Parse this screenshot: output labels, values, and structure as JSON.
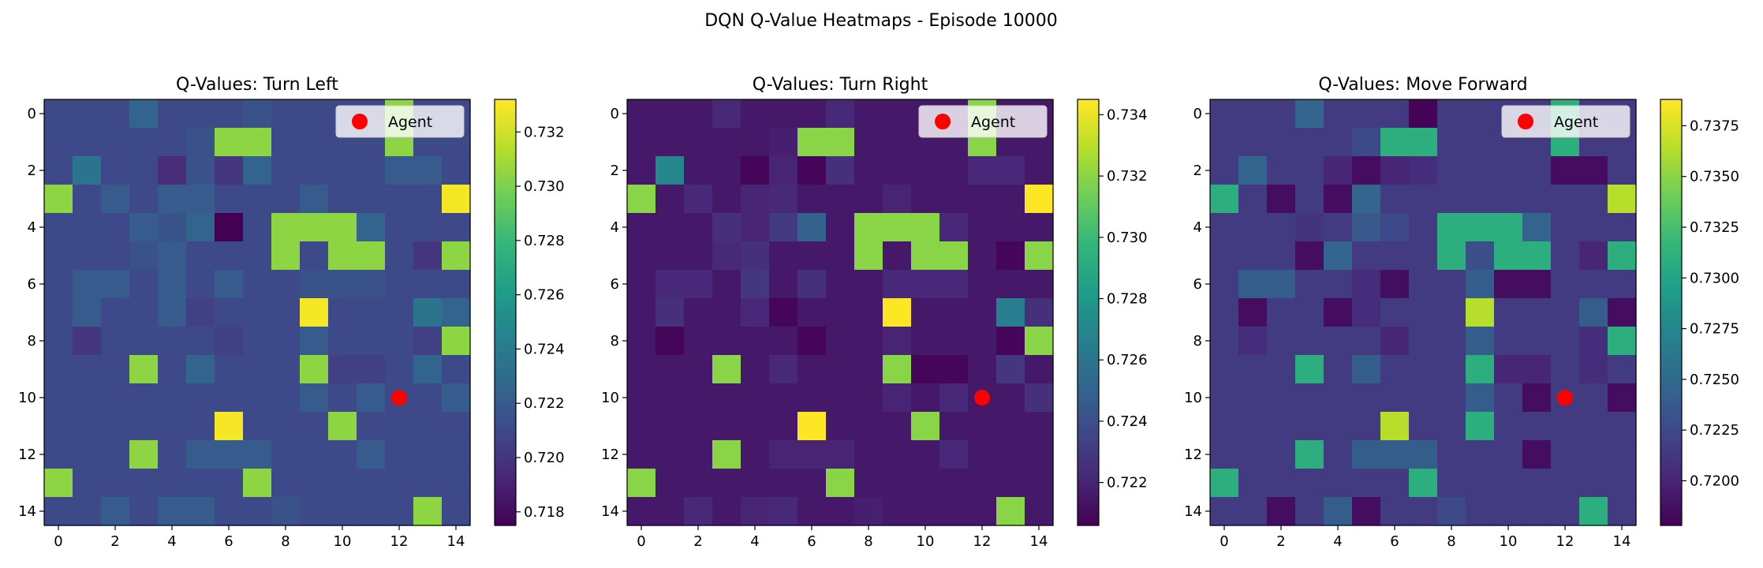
{
  "figure": {
    "suptitle": "DQN Q-Value Heatmaps - Episode 10000"
  },
  "colormap": [
    "#440154",
    "#482878",
    "#3e4989",
    "#31688e",
    "#26828e",
    "#1f9e89",
    "#35b779",
    "#6ece58",
    "#b5de2b",
    "#fde725"
  ],
  "chart_data": [
    {
      "type": "heatmap",
      "title": "Q-Values: Turn Left",
      "xlabel": "",
      "ylabel": "",
      "xticks": [
        0,
        2,
        4,
        6,
        8,
        10,
        12,
        14
      ],
      "yticks": [
        0,
        2,
        4,
        6,
        8,
        10,
        12,
        14
      ],
      "colorbar": {
        "min": 0.7175,
        "max": 0.7332,
        "ticks": [
          "0.718",
          "0.720",
          "0.722",
          "0.724",
          "0.726",
          "0.728",
          "0.730",
          "0.732"
        ]
      },
      "agent": {
        "x": 12,
        "y": 10,
        "label": "Agent",
        "color": "#ff0000"
      },
      "legend_position": "upper right",
      "values": [
        [
          0.721,
          0.721,
          0.721,
          0.7225,
          0.721,
          0.721,
          0.721,
          0.7215,
          0.721,
          0.721,
          0.721,
          0.721,
          0.7305,
          0.721,
          0.721
        ],
        [
          0.721,
          0.721,
          0.721,
          0.721,
          0.721,
          0.7215,
          0.7305,
          0.7305,
          0.721,
          0.721,
          0.721,
          0.721,
          0.7305,
          0.721,
          0.721
        ],
        [
          0.721,
          0.7235,
          0.721,
          0.721,
          0.7195,
          0.7215,
          0.72,
          0.7225,
          0.721,
          0.721,
          0.721,
          0.721,
          0.722,
          0.722,
          0.721
        ],
        [
          0.7305,
          0.721,
          0.722,
          0.721,
          0.722,
          0.722,
          0.721,
          0.721,
          0.721,
          0.722,
          0.721,
          0.721,
          0.721,
          0.721,
          0.733
        ],
        [
          0.721,
          0.721,
          0.721,
          0.722,
          0.7215,
          0.7225,
          0.7175,
          0.721,
          0.7305,
          0.7305,
          0.7305,
          0.7225,
          0.721,
          0.721,
          0.721
        ],
        [
          0.721,
          0.721,
          0.721,
          0.7215,
          0.722,
          0.721,
          0.721,
          0.721,
          0.7305,
          0.721,
          0.7305,
          0.7305,
          0.721,
          0.72,
          0.7305
        ],
        [
          0.721,
          0.722,
          0.722,
          0.721,
          0.722,
          0.721,
          0.722,
          0.721,
          0.721,
          0.7215,
          0.7215,
          0.7215,
          0.721,
          0.721,
          0.721
        ],
        [
          0.721,
          0.722,
          0.721,
          0.721,
          0.722,
          0.7205,
          0.721,
          0.721,
          0.721,
          0.733,
          0.721,
          0.721,
          0.721,
          0.7235,
          0.7225
        ],
        [
          0.721,
          0.72,
          0.721,
          0.721,
          0.721,
          0.721,
          0.7205,
          0.721,
          0.721,
          0.722,
          0.721,
          0.721,
          0.721,
          0.7205,
          0.7305
        ],
        [
          0.721,
          0.721,
          0.721,
          0.7305,
          0.721,
          0.7225,
          0.721,
          0.721,
          0.721,
          0.7305,
          0.7205,
          0.7205,
          0.721,
          0.7225,
          0.721
        ],
        [
          0.721,
          0.721,
          0.721,
          0.721,
          0.721,
          0.721,
          0.721,
          0.721,
          0.721,
          0.722,
          0.721,
          0.722,
          0.721,
          0.721,
          0.722
        ],
        [
          0.721,
          0.721,
          0.721,
          0.721,
          0.721,
          0.721,
          0.733,
          0.721,
          0.721,
          0.721,
          0.7305,
          0.721,
          0.721,
          0.721,
          0.721
        ],
        [
          0.721,
          0.721,
          0.721,
          0.7305,
          0.721,
          0.722,
          0.722,
          0.722,
          0.721,
          0.721,
          0.721,
          0.722,
          0.721,
          0.721,
          0.721
        ],
        [
          0.7305,
          0.721,
          0.721,
          0.721,
          0.721,
          0.721,
          0.721,
          0.7305,
          0.721,
          0.721,
          0.721,
          0.721,
          0.721,
          0.721,
          0.721
        ],
        [
          0.721,
          0.721,
          0.722,
          0.721,
          0.722,
          0.722,
          0.721,
          0.721,
          0.7215,
          0.721,
          0.721,
          0.721,
          0.721,
          0.7305,
          0.721
        ]
      ]
    },
    {
      "type": "heatmap",
      "title": "Q-Values: Turn Right",
      "xlabel": "",
      "ylabel": "",
      "xticks": [
        0,
        2,
        4,
        6,
        8,
        10,
        12,
        14
      ],
      "yticks": [
        0,
        2,
        4,
        6,
        8,
        10,
        12,
        14
      ],
      "colorbar": {
        "min": 0.7206,
        "max": 0.7345,
        "ticks": [
          "0.722",
          "0.724",
          "0.726",
          "0.728",
          "0.730",
          "0.732",
          "0.734"
        ]
      },
      "agent": {
        "x": 12,
        "y": 10,
        "label": "Agent",
        "color": "#ff0000"
      },
      "legend_position": "upper right",
      "values": [
        [
          0.7215,
          0.7215,
          0.7215,
          0.7222,
          0.7215,
          0.7215,
          0.7215,
          0.7222,
          0.7215,
          0.7215,
          0.7215,
          0.7215,
          0.732,
          0.7215,
          0.7215
        ],
        [
          0.7215,
          0.7215,
          0.7215,
          0.7215,
          0.7215,
          0.7218,
          0.732,
          0.732,
          0.7215,
          0.7215,
          0.7215,
          0.7215,
          0.732,
          0.7215,
          0.7215
        ],
        [
          0.7215,
          0.727,
          0.7215,
          0.7215,
          0.7208,
          0.722,
          0.7208,
          0.7225,
          0.7215,
          0.7215,
          0.7215,
          0.7215,
          0.7222,
          0.7222,
          0.7215
        ],
        [
          0.732,
          0.7215,
          0.7222,
          0.7215,
          0.722,
          0.7222,
          0.7215,
          0.7215,
          0.7215,
          0.722,
          0.7215,
          0.7215,
          0.7215,
          0.7215,
          0.7345
        ],
        [
          0.7215,
          0.7215,
          0.7215,
          0.7225,
          0.722,
          0.723,
          0.725,
          0.7215,
          0.732,
          0.732,
          0.732,
          0.7222,
          0.7215,
          0.7215,
          0.7215
        ],
        [
          0.7215,
          0.7215,
          0.7215,
          0.7222,
          0.7225,
          0.7215,
          0.7215,
          0.7215,
          0.732,
          0.7215,
          0.732,
          0.732,
          0.7215,
          0.7208,
          0.732
        ],
        [
          0.7215,
          0.7222,
          0.7222,
          0.7215,
          0.7228,
          0.7215,
          0.7225,
          0.7215,
          0.7215,
          0.7222,
          0.7222,
          0.7222,
          0.7215,
          0.7215,
          0.7215
        ],
        [
          0.7215,
          0.7225,
          0.7215,
          0.7215,
          0.7222,
          0.7208,
          0.7215,
          0.7215,
          0.7215,
          0.7345,
          0.7215,
          0.7215,
          0.7215,
          0.7265,
          0.7225
        ],
        [
          0.7215,
          0.7208,
          0.7215,
          0.7215,
          0.7215,
          0.7215,
          0.7208,
          0.7215,
          0.7215,
          0.722,
          0.7215,
          0.7215,
          0.7215,
          0.7208,
          0.732
        ],
        [
          0.7215,
          0.7215,
          0.7215,
          0.732,
          0.7215,
          0.7222,
          0.7215,
          0.7215,
          0.7215,
          0.732,
          0.7208,
          0.7208,
          0.7215,
          0.7228,
          0.7215
        ],
        [
          0.7215,
          0.7215,
          0.7215,
          0.7215,
          0.7215,
          0.7215,
          0.7215,
          0.7215,
          0.7215,
          0.722,
          0.7215,
          0.7222,
          0.7215,
          0.7215,
          0.7225
        ],
        [
          0.7215,
          0.7215,
          0.7215,
          0.7215,
          0.7215,
          0.7215,
          0.7345,
          0.7215,
          0.7215,
          0.7215,
          0.732,
          0.7215,
          0.7215,
          0.7215,
          0.7215
        ],
        [
          0.7215,
          0.7215,
          0.7215,
          0.732,
          0.7215,
          0.722,
          0.722,
          0.722,
          0.7215,
          0.7215,
          0.7215,
          0.7222,
          0.7215,
          0.7215,
          0.7215
        ],
        [
          0.732,
          0.7215,
          0.7215,
          0.7215,
          0.7215,
          0.7215,
          0.7215,
          0.732,
          0.7215,
          0.7215,
          0.7215,
          0.7215,
          0.7215,
          0.7215,
          0.7215
        ],
        [
          0.7215,
          0.7215,
          0.7222,
          0.7215,
          0.722,
          0.7222,
          0.7215,
          0.7215,
          0.7218,
          0.7215,
          0.7215,
          0.7215,
          0.7215,
          0.732,
          0.7215
        ]
      ]
    },
    {
      "type": "heatmap",
      "title": "Q-Values: Move Forward",
      "xlabel": "",
      "ylabel": "",
      "xticks": [
        0,
        2,
        4,
        6,
        8,
        10,
        12,
        14
      ],
      "yticks": [
        0,
        2,
        4,
        6,
        8,
        10,
        12,
        14
      ],
      "colorbar": {
        "min": 0.7178,
        "max": 0.7388,
        "ticks": [
          "0.7200",
          "0.7225",
          "0.7250",
          "0.7275",
          "0.7300",
          "0.7325",
          "0.7350",
          "0.7375"
        ]
      },
      "agent": {
        "x": 12,
        "y": 10,
        "label": "Agent",
        "color": "#ff0000"
      },
      "legend_position": "upper right",
      "values": [
        [
          0.7215,
          0.7215,
          0.7215,
          0.7245,
          0.7215,
          0.7215,
          0.7215,
          0.718,
          0.7215,
          0.7215,
          0.7215,
          0.7215,
          0.731,
          0.7215,
          0.7215
        ],
        [
          0.7215,
          0.7215,
          0.7215,
          0.7215,
          0.7215,
          0.7225,
          0.731,
          0.731,
          0.7215,
          0.7215,
          0.7215,
          0.7215,
          0.731,
          0.7215,
          0.7215
        ],
        [
          0.7215,
          0.7245,
          0.7215,
          0.7215,
          0.72,
          0.7185,
          0.72,
          0.7205,
          0.7215,
          0.7215,
          0.7215,
          0.7215,
          0.7185,
          0.7185,
          0.7215
        ],
        [
          0.731,
          0.7215,
          0.7185,
          0.7215,
          0.7185,
          0.7245,
          0.7215,
          0.7215,
          0.7215,
          0.7215,
          0.7215,
          0.7215,
          0.7215,
          0.7215,
          0.7365
        ],
        [
          0.7215,
          0.7215,
          0.7215,
          0.721,
          0.7215,
          0.7235,
          0.7225,
          0.7215,
          0.731,
          0.731,
          0.731,
          0.7245,
          0.7215,
          0.7215,
          0.7215
        ],
        [
          0.7215,
          0.7215,
          0.7215,
          0.7185,
          0.7245,
          0.7215,
          0.7215,
          0.7215,
          0.731,
          0.723,
          0.731,
          0.731,
          0.7215,
          0.72,
          0.731
        ],
        [
          0.7215,
          0.724,
          0.724,
          0.7215,
          0.7215,
          0.7205,
          0.7185,
          0.7215,
          0.7215,
          0.724,
          0.7185,
          0.7185,
          0.7215,
          0.7215,
          0.7215
        ],
        [
          0.7215,
          0.7185,
          0.7215,
          0.7215,
          0.7185,
          0.7205,
          0.7215,
          0.7215,
          0.7215,
          0.7365,
          0.7215,
          0.7215,
          0.7215,
          0.724,
          0.7185
        ],
        [
          0.7215,
          0.7205,
          0.7215,
          0.7215,
          0.7215,
          0.7215,
          0.72,
          0.7215,
          0.7215,
          0.724,
          0.7215,
          0.7215,
          0.7215,
          0.7205,
          0.731
        ],
        [
          0.7215,
          0.7215,
          0.7215,
          0.731,
          0.7215,
          0.724,
          0.7215,
          0.7215,
          0.7215,
          0.731,
          0.72,
          0.72,
          0.7215,
          0.7205,
          0.7215
        ],
        [
          0.7215,
          0.7215,
          0.7215,
          0.7215,
          0.7215,
          0.7215,
          0.7215,
          0.7215,
          0.7215,
          0.724,
          0.7215,
          0.7185,
          0.7215,
          0.7215,
          0.7185
        ],
        [
          0.7215,
          0.7215,
          0.7215,
          0.7215,
          0.7215,
          0.7215,
          0.7365,
          0.7215,
          0.7215,
          0.731,
          0.7215,
          0.7215,
          0.7215,
          0.7215,
          0.7215
        ],
        [
          0.7215,
          0.7215,
          0.7215,
          0.731,
          0.7215,
          0.724,
          0.724,
          0.724,
          0.7215,
          0.7215,
          0.7215,
          0.7185,
          0.7215,
          0.7215,
          0.7215
        ],
        [
          0.731,
          0.7215,
          0.7215,
          0.7215,
          0.7215,
          0.7215,
          0.7215,
          0.731,
          0.7215,
          0.7215,
          0.7215,
          0.7215,
          0.7215,
          0.7215,
          0.7215
        ],
        [
          0.7215,
          0.7215,
          0.7185,
          0.7215,
          0.724,
          0.7185,
          0.7215,
          0.7215,
          0.7225,
          0.7215,
          0.7215,
          0.7215,
          0.7215,
          0.731,
          0.7215
        ]
      ]
    }
  ]
}
